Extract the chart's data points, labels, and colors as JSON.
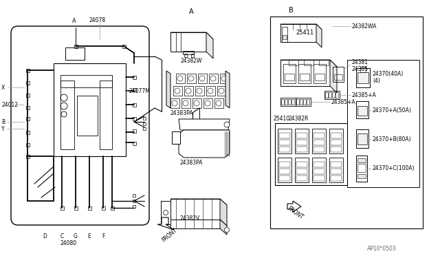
{
  "bg_color": "#ffffff",
  "lc": "#000000",
  "gc": "#999999",
  "part_number": "AP10*0503",
  "labels": {
    "A_left": "A",
    "A_center": "A",
    "B_right": "B",
    "X": "X",
    "B": "B",
    "Y": "Y",
    "D": "D",
    "C": "C",
    "G": "G",
    "E": "E",
    "F": "F",
    "p24078": "24078",
    "p24012": "24012",
    "p24077M": "24077M",
    "p24080": "24080",
    "p24382W": "24382W",
    "p24383PA_1": "24383PA",
    "p24383PA_2": "24383PA",
    "p24382V": "24382V",
    "p24382WA": "24382WA",
    "p25411": "25411",
    "p24381": "24381",
    "p24385": "24385",
    "p24385A1": "24385+A",
    "p24385A2": "24385+A",
    "p25410": "25410",
    "p24382R": "24382R",
    "p24370_40A": "24370(40A)",
    "p24370_4": "(4)",
    "p24370A": "24370+A(50A)",
    "p24370B": "24370+B(80A)",
    "p24370C": "24370+C(100A)",
    "front_A": "FRONT",
    "front_B": "FRONT"
  }
}
